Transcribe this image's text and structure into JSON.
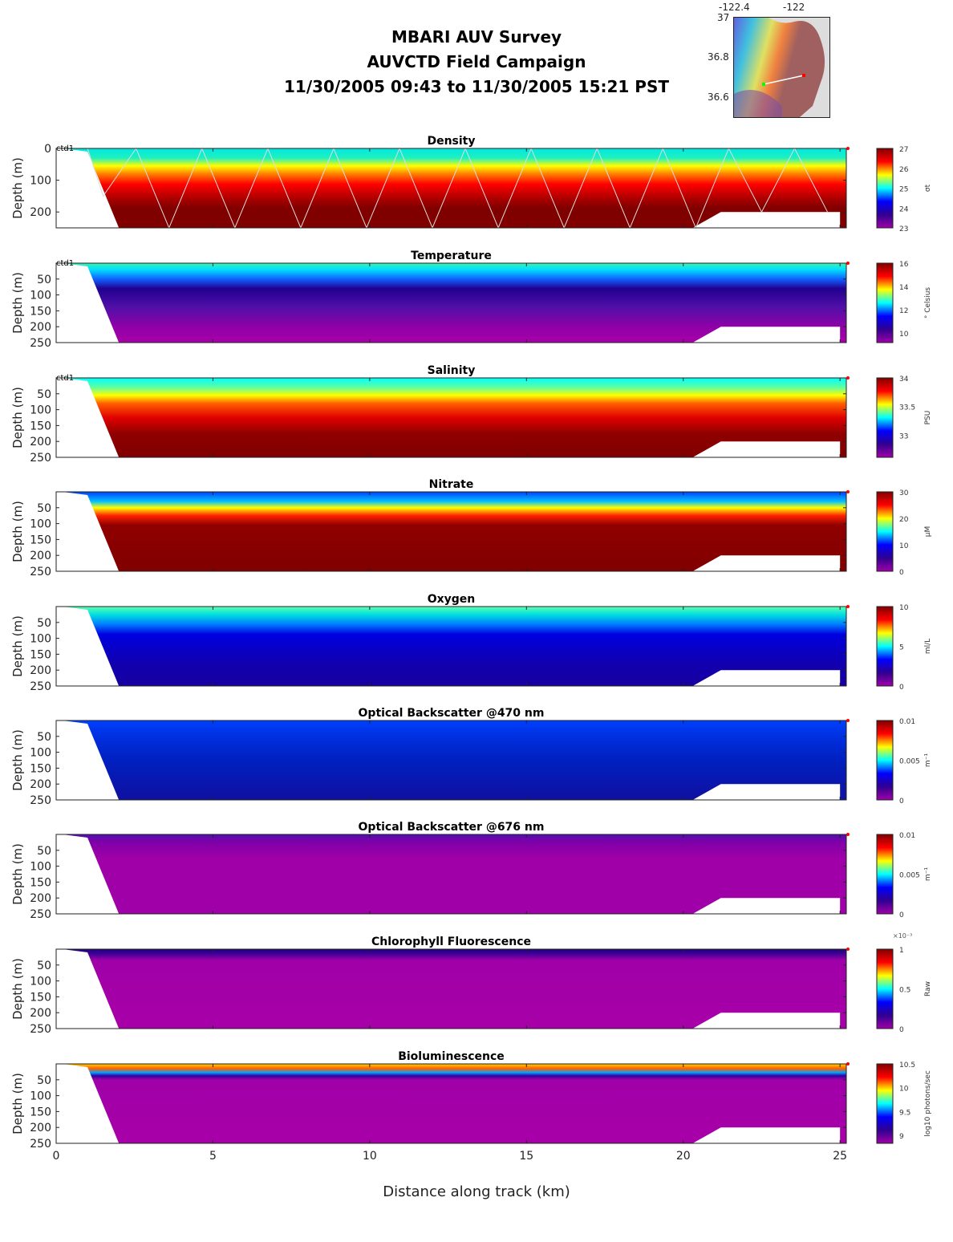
{
  "title": {
    "line1": "MBARI AUV Survey",
    "line2": "AUVCTD Field Campaign",
    "line3": "11/30/2005 09:43  to 11/30/2005 15:21 PST"
  },
  "map_inset": {
    "lon_labels": [
      "-122.4",
      "-122"
    ],
    "lat_labels": [
      "37",
      "36.8",
      "36.6"
    ],
    "track_start_color": "#00ff00",
    "track_end_color": "#ff0000"
  },
  "chart_data": {
    "type": "heatmap",
    "xlabel": "Distance along track (km)",
    "xlim": [
      0,
      25.2
    ],
    "xticks": [
      0,
      5,
      10,
      15,
      20,
      25
    ],
    "ylabel": "Depth (m)",
    "ylim": [
      0,
      250
    ],
    "colormap": [
      "#a000a8",
      "#300090",
      "#0000ff",
      "#00ffff",
      "#ffff00",
      "#ff0000",
      "#800000"
    ],
    "bottom_profile": {
      "km": [
        0,
        0.2,
        1.0,
        2.0,
        20.3,
        21.2,
        25.0,
        25.0,
        25.2
      ],
      "depth_m": [
        0,
        0,
        10,
        250,
        250,
        200,
        200,
        250,
        250
      ]
    },
    "panels": [
      {
        "title": "Density",
        "tag": "ctd1",
        "yticks": [
          0,
          100,
          200
        ],
        "cbar_ticks": [
          "27",
          "26",
          "25",
          "24",
          "23"
        ],
        "cbar_label": "σt",
        "profile": [
          [
            0,
            "#00e8e0"
          ],
          [
            0.12,
            "#20f0c0"
          ],
          [
            0.22,
            "#ffff00"
          ],
          [
            0.32,
            "#ff8000"
          ],
          [
            0.45,
            "#ff0000"
          ],
          [
            0.62,
            "#b00000"
          ],
          [
            0.75,
            "#800000"
          ],
          [
            1,
            "#800000"
          ]
        ]
      },
      {
        "title": "Temperature",
        "tag": "ctd1",
        "yticks": [
          50,
          100,
          150,
          200,
          250
        ],
        "cbar_ticks": [
          "16",
          "14",
          "12",
          "10"
        ],
        "cbar_label": "° Celsius",
        "profile": [
          [
            0,
            "#40f0b0"
          ],
          [
            0.08,
            "#00e0ff"
          ],
          [
            0.2,
            "#1060ff"
          ],
          [
            0.32,
            "#200090"
          ],
          [
            0.55,
            "#5010a8"
          ],
          [
            0.8,
            "#9000a8"
          ],
          [
            1,
            "#a800a8"
          ]
        ]
      },
      {
        "title": "Salinity",
        "tag": "ctd1",
        "yticks": [
          50,
          100,
          150,
          200,
          250
        ],
        "cbar_ticks": [
          "34",
          "33.5",
          "33"
        ],
        "cbar_label": "PSU",
        "profile": [
          [
            0,
            "#00ffff"
          ],
          [
            0.12,
            "#60ffa0"
          ],
          [
            0.22,
            "#ffff00"
          ],
          [
            0.32,
            "#ff6000"
          ],
          [
            0.5,
            "#e00000"
          ],
          [
            0.7,
            "#900000"
          ],
          [
            1,
            "#800000"
          ]
        ]
      },
      {
        "title": "Nitrate",
        "tag": "",
        "yticks": [
          50,
          100,
          150,
          200,
          250
        ],
        "cbar_ticks": [
          "30",
          "20",
          "10",
          "0"
        ],
        "cbar_label": "μM",
        "profile": [
          [
            0,
            "#0040ff"
          ],
          [
            0.12,
            "#00c0ff"
          ],
          [
            0.2,
            "#ffff00"
          ],
          [
            0.3,
            "#ff2000"
          ],
          [
            0.42,
            "#900000"
          ],
          [
            1,
            "#800000"
          ]
        ]
      },
      {
        "title": "Oxygen",
        "tag": "",
        "yticks": [
          50,
          100,
          150,
          200,
          250
        ],
        "cbar_ticks": [
          "10",
          "5",
          "0"
        ],
        "cbar_label": "ml/L",
        "profile": [
          [
            0,
            "#60ffb0"
          ],
          [
            0.1,
            "#00e0e0"
          ],
          [
            0.22,
            "#0080ff"
          ],
          [
            0.35,
            "#0000e0"
          ],
          [
            0.7,
            "#1000b0"
          ],
          [
            1,
            "#1800a0"
          ]
        ]
      },
      {
        "title": "Optical Backscatter @470 nm",
        "tag": "",
        "yticks": [
          50,
          100,
          150,
          200,
          250
        ],
        "cbar_ticks": [
          "0.01",
          "0.005",
          "0"
        ],
        "cbar_label": "m⁻¹",
        "profile": [
          [
            0,
            "#0040ff"
          ],
          [
            0.2,
            "#0030e0"
          ],
          [
            0.5,
            "#0020c0"
          ],
          [
            1,
            "#1010a0"
          ]
        ]
      },
      {
        "title": "Optical Backscatter @676 nm",
        "tag": "",
        "yticks": [
          50,
          100,
          150,
          200,
          250
        ],
        "cbar_ticks": [
          "0.01",
          "0.005",
          "0"
        ],
        "cbar_label": "m⁻¹",
        "profile": [
          [
            0,
            "#5010b0"
          ],
          [
            0.1,
            "#8000a8"
          ],
          [
            0.3,
            "#a000a8"
          ],
          [
            1,
            "#a000a8"
          ]
        ]
      },
      {
        "title": "Chlorophyll Fluorescence",
        "tag": "",
        "yticks": [
          50,
          100,
          150,
          200,
          250
        ],
        "cbar_ticks": [
          "1",
          "0.5",
          "0"
        ],
        "cbar_exponent": "×10⁻³",
        "cbar_label": "Raw",
        "profile": [
          [
            0,
            "#200080"
          ],
          [
            0.06,
            "#400098"
          ],
          [
            0.14,
            "#a000a8"
          ],
          [
            1,
            "#a800a8"
          ]
        ]
      },
      {
        "title": "Bioluminescence",
        "tag": "",
        "yticks": [
          50,
          100,
          150,
          200,
          250
        ],
        "cbar_ticks": [
          "10.5",
          "10",
          "9.5",
          "9"
        ],
        "cbar_label": "log10 photons/sec",
        "profile": [
          [
            0,
            "#ffd000"
          ],
          [
            0.06,
            "#ff6000"
          ],
          [
            0.11,
            "#00a0ff"
          ],
          [
            0.15,
            "#3000a0"
          ],
          [
            0.2,
            "#a000a8"
          ],
          [
            1,
            "#a800a8"
          ]
        ]
      }
    ]
  }
}
